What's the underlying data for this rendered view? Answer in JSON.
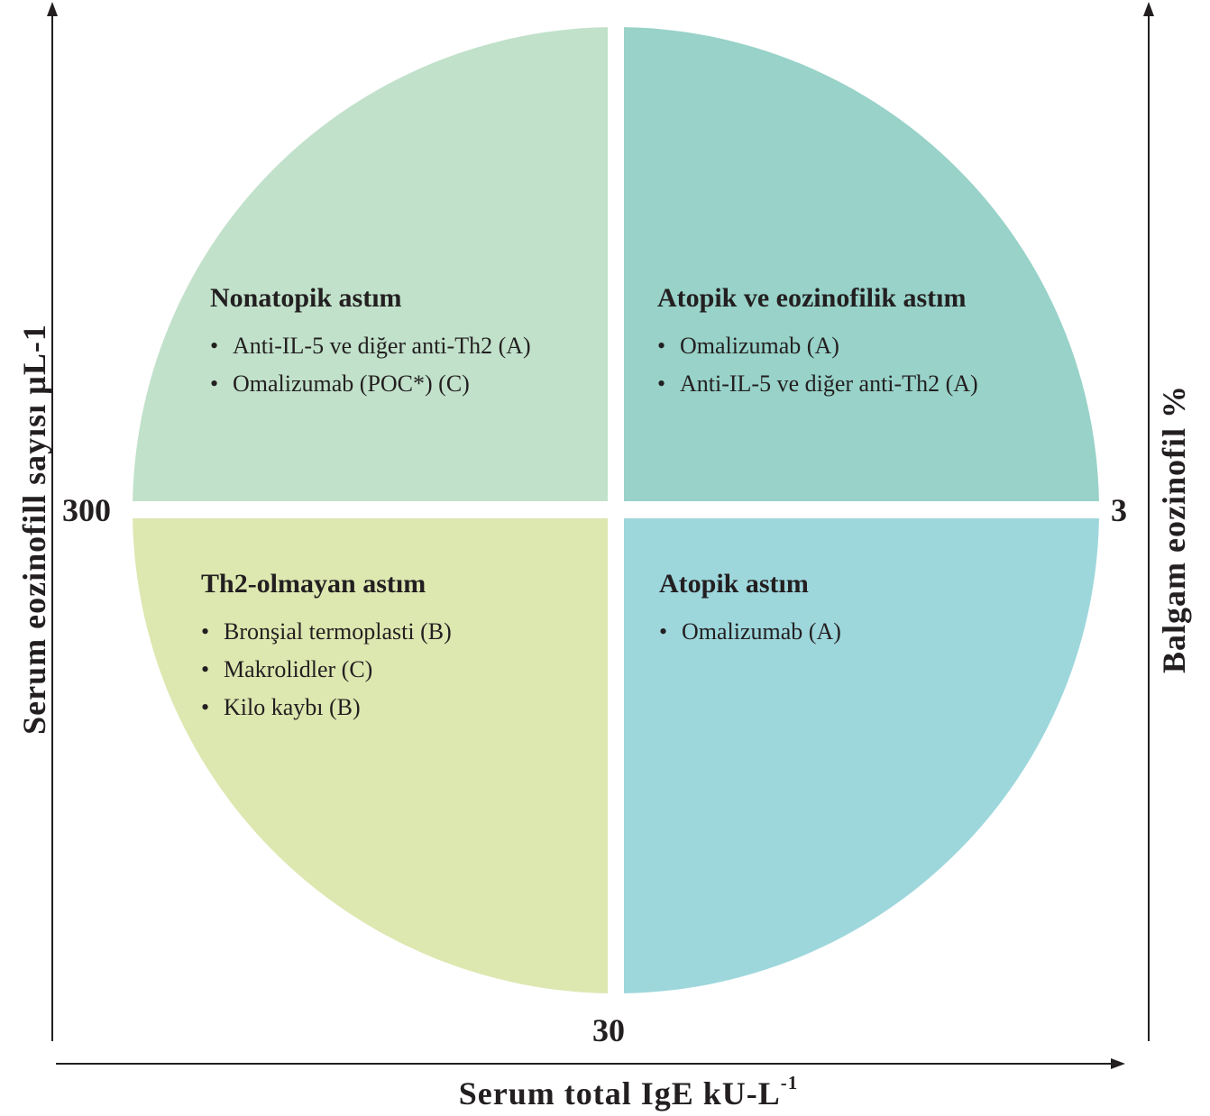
{
  "axes": {
    "left_label": "Serum eozinofill sayısı µL-1",
    "right_label": "Balgam eozinofil %",
    "bottom_label": "Serum total IgE kU-L",
    "bottom_label_superscript": "-1",
    "left_tick": "300",
    "right_tick": "3",
    "bottom_tick": "30"
  },
  "quadrants": {
    "top_left": {
      "title": "Nonatopik astım",
      "color": "#c1e1ca",
      "items": [
        "Anti-IL-5 ve diğer anti-Th2 (A)",
        "Omalizumab (POC*) (C)"
      ]
    },
    "top_right": {
      "title": "Atopik ve eozinofilik astım",
      "color": "#98d2c8",
      "items": [
        "Omalizumab (A)",
        "Anti-IL-5 ve diğer anti-Th2 (A)"
      ]
    },
    "bottom_left": {
      "title": "Th2-olmayan astım",
      "color": "#dde7b0",
      "items": [
        "Bronşial termoplasti (B)",
        "Makrolidler (C)",
        "Kilo kaybı (B)"
      ]
    },
    "bottom_right": {
      "title": "Atopik astım",
      "color": "#9dd7dc",
      "items": [
        "Omalizumab (A)"
      ]
    }
  },
  "bullet_char": "•"
}
